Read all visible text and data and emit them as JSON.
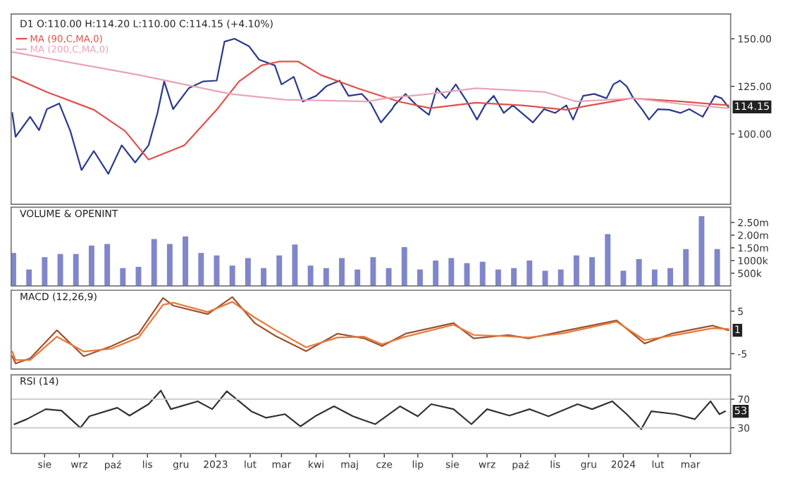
{
  "chart_data": [
    {
      "type": "line",
      "title": "D1 O:110.00 H:114.20 L:110.00 C:114.15 (+4.10%)",
      "xlim": [
        "2022-07-02",
        "2024-04-06"
      ],
      "ylim": [
        63,
        163
      ],
      "yticks": [
        {
          "value": 100,
          "label": "100.00"
        },
        {
          "value": 125,
          "label": "125.00"
        },
        {
          "value": 150,
          "label": "150.00"
        }
      ],
      "tick_labels": "y",
      "legend": "top left",
      "grid": false,
      "series": [
        {
          "color": "#2b3a8c",
          "x": [
            "2022-07-03",
            "2022-07-06",
            "2022-07-19",
            "2022-07-27",
            "2022-08-03",
            "2022-08-14",
            "2022-08-24",
            "2022-09-03",
            "2022-09-14",
            "2022-09-27",
            "2022-10-09",
            "2022-10-21",
            "2022-11-02",
            "2022-11-10",
            "2022-11-16",
            "2022-11-24",
            "2022-12-08",
            "2022-12-21",
            "2023-01-02",
            "2023-01-09",
            "2023-01-18",
            "2023-01-31",
            "2023-02-09",
            "2023-02-23",
            "2023-03-01",
            "2023-03-12",
            "2023-03-20",
            "2023-04-01",
            "2023-04-10",
            "2023-04-22",
            "2023-04-30",
            "2023-05-12",
            "2023-05-20",
            "2023-05-29",
            "2023-06-08",
            "2023-06-10",
            "2023-06-20",
            "2023-06-30",
            "2023-07-11",
            "2023-07-18",
            "2023-07-26",
            "2023-08-04",
            "2023-08-14",
            "2023-08-23",
            "2023-08-30",
            "2023-09-07",
            "2023-09-16",
            "2023-09-24",
            "2023-10-02",
            "2023-10-12",
            "2023-10-22",
            "2023-11-01",
            "2023-11-11",
            "2023-11-17",
            "2023-11-26",
            "2023-12-06",
            "2023-12-17",
            "2023-12-23",
            "2023-12-29",
            "2024-01-04",
            "2024-01-10",
            "2024-01-18",
            "2024-01-24",
            "2024-02-01",
            "2024-02-11",
            "2024-02-21",
            "2024-02-29",
            "2024-03-12",
            "2024-03-23",
            "2024-03-29",
            "2024-04-04"
          ],
          "values": [
            111,
            98.5,
            109,
            102,
            113,
            116,
            101.5,
            81,
            91,
            79,
            94,
            85,
            94,
            111,
            127.6,
            113,
            124,
            127.6,
            128,
            148.5,
            150,
            146,
            139,
            136,
            126,
            130,
            117,
            120,
            125,
            128,
            120,
            121,
            116,
            106,
            113,
            115,
            121,
            115,
            110,
            124,
            118.7,
            126,
            117,
            107.5,
            115,
            120,
            111,
            115,
            111,
            106,
            113,
            111,
            115,
            107.5,
            120,
            121,
            118.7,
            126,
            128,
            125,
            118.7,
            112.7,
            107.5,
            113,
            112.7,
            111,
            113,
            109,
            120,
            118.7,
            114.15
          ]
        },
        {
          "name": "MA (90,C,MA,0)",
          "color": "#e0504a",
          "x": [
            "2022-07-03",
            "2022-08-03",
            "2022-09-14",
            "2022-10-12",
            "2022-11-02",
            "2022-12-04",
            "2023-01-02",
            "2023-01-22",
            "2023-02-11",
            "2023-02-27",
            "2023-03-16",
            "2023-04-05",
            "2023-05-08",
            "2023-06-14",
            "2023-07-12",
            "2023-08-22",
            "2023-10-02",
            "2023-11-11",
            "2023-12-02",
            "2024-01-08",
            "2024-02-22",
            "2024-04-04"
          ],
          "values": [
            130,
            122,
            112.7,
            101.5,
            86.5,
            94,
            112.7,
            127.6,
            136,
            138,
            138,
            131,
            124,
            117,
            113.5,
            116.4,
            115,
            112.7,
            115,
            118.7,
            117,
            115
          ]
        },
        {
          "name": "MA (200,C,MA,0)",
          "color": "#e8a4b8",
          "x": [
            "2022-07-03",
            "2022-10-24",
            "2023-01-14",
            "2023-03-04",
            "2023-05-17",
            "2023-06-02",
            "2023-07-12",
            "2023-08-22",
            "2023-10-23",
            "2023-11-20",
            "2024-01-11",
            "2024-02-22",
            "2024-04-04"
          ],
          "values": [
            143,
            131,
            121,
            118,
            117,
            118.7,
            121,
            124,
            122,
            117,
            118.7,
            115.7,
            113.5
          ]
        }
      ],
      "annotations": [
        {
          "text": "114.15",
          "x": "2024-04-04",
          "y": 114.15
        }
      ]
    },
    {
      "type": "bar",
      "title": "VOLUME & OPENINT",
      "xlim": [
        "2022-07-02",
        "2024-04-06"
      ],
      "ylim": [
        0,
        3100000
      ],
      "yticks": [
        {
          "value": 500000,
          "label": "500k"
        },
        {
          "value": 1000000,
          "label": "1000k"
        },
        {
          "value": 1500000,
          "label": "1.50m"
        },
        {
          "value": 2000000,
          "label": "2.00m"
        },
        {
          "value": 2500000,
          "label": "2.50m"
        }
      ],
      "tick_labels": "y",
      "grid": false,
      "series": [
        {
          "color": "#7f86cc",
          "x": [
            "2022-07-04",
            "2022-07-18",
            "2022-08-01",
            "2022-08-15",
            "2022-08-29",
            "2022-09-12",
            "2022-09-26",
            "2022-10-10",
            "2022-10-24",
            "2022-11-07",
            "2022-11-21",
            "2022-12-05",
            "2022-12-19",
            "2023-01-02",
            "2023-01-16",
            "2023-01-30",
            "2023-02-13",
            "2023-02-27",
            "2023-03-13",
            "2023-03-27",
            "2023-04-10",
            "2023-04-24",
            "2023-05-08",
            "2023-05-22",
            "2023-06-05",
            "2023-06-19",
            "2023-07-03",
            "2023-07-17",
            "2023-07-31",
            "2023-08-14",
            "2023-08-28",
            "2023-09-11",
            "2023-09-25",
            "2023-10-09",
            "2023-10-23",
            "2023-11-06",
            "2023-11-20",
            "2023-12-04",
            "2023-12-18",
            "2024-01-01",
            "2024-01-15",
            "2024-01-29",
            "2024-02-12",
            "2024-02-26",
            "2024-03-11",
            "2024-03-25"
          ],
          "values": [
            1300000,
            650000,
            1130000,
            1260000,
            1260000,
            1590000,
            1650000,
            700000,
            750000,
            1850000,
            1650000,
            1950000,
            1300000,
            1200000,
            800000,
            1100000,
            700000,
            1200000,
            1630000,
            800000,
            700000,
            1100000,
            650000,
            1130000,
            700000,
            1530000,
            650000,
            1000000,
            1100000,
            900000,
            950000,
            650000,
            700000,
            1000000,
            600000,
            650000,
            1200000,
            1130000,
            2040000,
            600000,
            1060000,
            650000,
            700000,
            1450000,
            2750000,
            1450000
          ]
        }
      ]
    },
    {
      "type": "line",
      "title": "MACD (12,26,9)",
      "xlim": [
        "2022-07-02",
        "2024-04-06"
      ],
      "ylim": [
        -8.6,
        9.9
      ],
      "yticks": [
        -5,
        5
      ],
      "tick_labels": "y",
      "grid": false,
      "series": [
        {
          "color": "#a0522d",
          "x": [
            "2022-07-03",
            "2022-07-06",
            "2022-07-19",
            "2022-08-12",
            "2022-09-05",
            "2022-09-30",
            "2022-10-24",
            "2022-11-15",
            "2022-11-24",
            "2022-12-25",
            "2023-01-16",
            "2023-02-05",
            "2023-02-24",
            "2023-03-23",
            "2023-04-20",
            "2023-05-14",
            "2023-05-30",
            "2023-06-20",
            "2023-08-02",
            "2023-08-20",
            "2023-09-20",
            "2023-10-08",
            "2023-11-08",
            "2023-12-26",
            "2024-01-20",
            "2024-02-13",
            "2024-03-21",
            "2024-04-04"
          ],
          "values": [
            -5.6,
            -7.3,
            -6.1,
            0.5,
            -5.6,
            -3.2,
            -0.3,
            8.1,
            6.3,
            4.3,
            8.3,
            2.2,
            -0.9,
            -4.4,
            -0.3,
            -1.4,
            -3.2,
            -0.3,
            2.2,
            -1.4,
            -0.6,
            -1.4,
            0.3,
            2.8,
            -2.6,
            -0.3,
            1.6,
            0.5
          ]
        },
        {
          "color": "#e8783a",
          "x": [
            "2022-07-03",
            "2022-07-06",
            "2022-07-19",
            "2022-08-12",
            "2022-09-05",
            "2022-09-30",
            "2022-10-24",
            "2022-11-15",
            "2022-11-24",
            "2022-12-25",
            "2023-01-16",
            "2023-02-05",
            "2023-02-24",
            "2023-03-23",
            "2023-04-20",
            "2023-05-14",
            "2023-05-30",
            "2023-06-20",
            "2023-08-02",
            "2023-08-20",
            "2023-09-20",
            "2023-10-08",
            "2023-11-08",
            "2023-12-26",
            "2024-01-20",
            "2024-02-13",
            "2024-03-21",
            "2024-04-04"
          ],
          "values": [
            -4.5,
            -6.5,
            -6.5,
            -1,
            -4.5,
            -3.8,
            -1.2,
            6.5,
            7,
            4.8,
            7.2,
            3.5,
            0.5,
            -3.5,
            -1.2,
            -1,
            -2.8,
            -1,
            1.8,
            -0.6,
            -0.9,
            -1.2,
            -0.2,
            2.5,
            -1.8,
            -0.8,
            1,
            0.8
          ]
        }
      ],
      "annotations": [
        {
          "text": "1",
          "x": "2024-04-04",
          "y": 0.5
        }
      ]
    },
    {
      "type": "line",
      "title": "RSI (14)",
      "xlim": [
        "2022-07-02",
        "2024-04-06"
      ],
      "ylim": [
        -6,
        104
      ],
      "yticks": [
        30,
        70
      ],
      "grid": false,
      "xticks": [
        {
          "value": "2022-08-01",
          "label": "sie"
        },
        {
          "value": "2022-09-01",
          "label": "wrz"
        },
        {
          "value": "2022-10-01",
          "label": "paź"
        },
        {
          "value": "2022-11-01",
          "label": "lis"
        },
        {
          "value": "2022-12-01",
          "label": "gru"
        },
        {
          "value": "2023-01-01",
          "label": "2023"
        },
        {
          "value": "2023-02-01",
          "label": "lut"
        },
        {
          "value": "2023-03-01",
          "label": "mar"
        },
        {
          "value": "2023-04-01",
          "label": "kwi"
        },
        {
          "value": "2023-05-01",
          "label": "maj"
        },
        {
          "value": "2023-06-01",
          "label": "cze"
        },
        {
          "value": "2023-07-01",
          "label": "lip"
        },
        {
          "value": "2023-08-01",
          "label": "sie"
        },
        {
          "value": "2023-09-01",
          "label": "wrz"
        },
        {
          "value": "2023-10-01",
          "label": "paź"
        },
        {
          "value": "2023-11-01",
          "label": "lis"
        },
        {
          "value": "2023-12-01",
          "label": "gru"
        },
        {
          "value": "2024-01-01",
          "label": "2024"
        },
        {
          "value": "2024-02-01",
          "label": "lut"
        },
        {
          "value": "2024-03-01",
          "label": "mar"
        }
      ],
      "ref_lines": [
        {
          "axis": "y",
          "value": 70,
          "color": "#c8c8c8"
        },
        {
          "axis": "y",
          "value": 30,
          "color": "#c8c8c8"
        }
      ],
      "series": [
        {
          "color": "#333333",
          "x": [
            "2022-07-05",
            "2022-07-16",
            "2022-08-02",
            "2022-08-16",
            "2022-09-02",
            "2022-09-10",
            "2022-10-05",
            "2022-10-16",
            "2022-11-02",
            "2022-11-13",
            "2022-11-22",
            "2022-12-16",
            "2022-12-29",
            "2023-01-11",
            "2023-02-02",
            "2023-02-15",
            "2023-03-04",
            "2023-03-18",
            "2023-03-31",
            "2023-04-17",
            "2023-05-04",
            "2023-05-24",
            "2023-06-15",
            "2023-07-01",
            "2023-07-13",
            "2023-08-02",
            "2023-08-18",
            "2023-09-01",
            "2023-09-21",
            "2023-10-09",
            "2023-10-26",
            "2023-11-21",
            "2023-12-04",
            "2023-12-22",
            "2024-01-04",
            "2024-01-17",
            "2024-01-26",
            "2024-02-17",
            "2024-03-05",
            "2024-03-19",
            "2024-03-27",
            "2024-04-01"
          ],
          "values": [
            35,
            42,
            56,
            54,
            30,
            46,
            58,
            47,
            63,
            82,
            56,
            67,
            56,
            81,
            53,
            44,
            49,
            32,
            46,
            60,
            46,
            35,
            60,
            46,
            63,
            56,
            35,
            56,
            47,
            56,
            46,
            63,
            56,
            67,
            49,
            28,
            53,
            49,
            42,
            67,
            49,
            53
          ]
        }
      ],
      "annotations": [
        {
          "text": "53",
          "x": "2024-04-01",
          "y": 53
        }
      ]
    }
  ]
}
